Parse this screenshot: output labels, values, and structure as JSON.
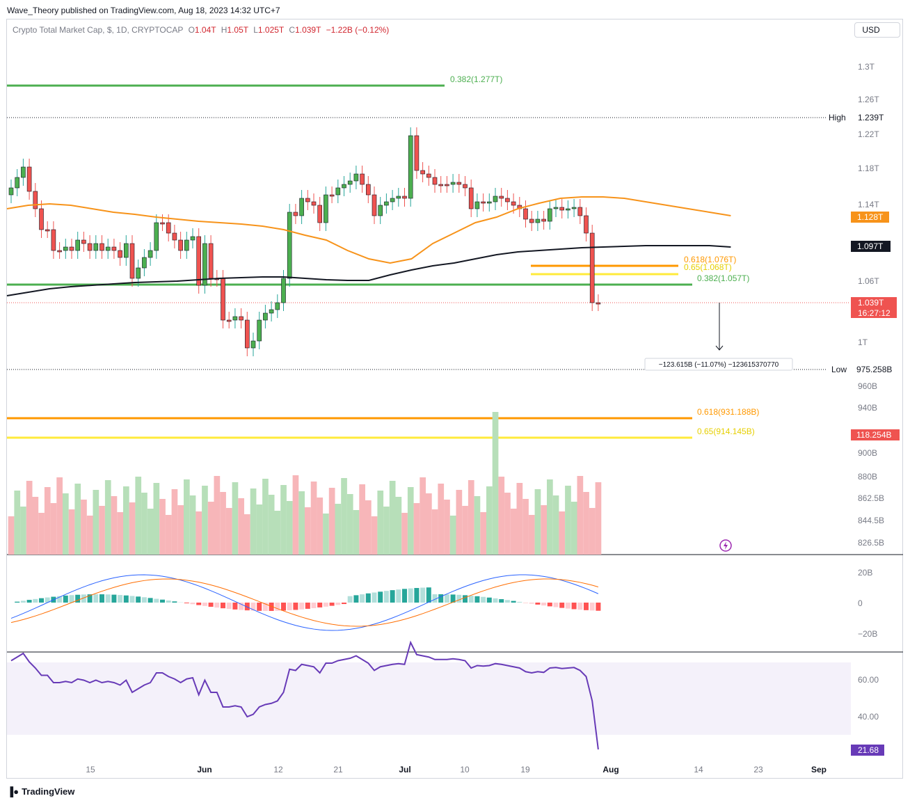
{
  "header": {
    "credit": "Wave_Theory published on TradingView.com, Aug 18, 2023 14:32 UTC+7",
    "symbol": "Crypto Total Market Cap, $, 1D, CRYPTOCAP",
    "o_label": "O",
    "o_value": "1.04T",
    "h_label": "H",
    "h_value": "1.05T",
    "l_label": "L",
    "l_value": "1.025T",
    "c_label": "C",
    "c_value": "1.039T",
    "change": "−1.22B (−0.12%)",
    "currency": "USD"
  },
  "price_axis": {
    "ticks": [
      "1.3T",
      "1.26T",
      "1.22T",
      "1.18T",
      "1.14T",
      "1.06T",
      "1T",
      "960B",
      "940B",
      "900B",
      "880B",
      "862.5B",
      "844.5B",
      "826.5B"
    ],
    "high_label": "High",
    "high_value": "1.239T",
    "low_label": "Low",
    "low_value": "975.258B",
    "ema50_value": "1.128T",
    "ema200_value": "1.097T",
    "last_value": "1.039T",
    "countdown": "16:27:12",
    "volume_value": "118.254B"
  },
  "fib_levels": {
    "upper_382": "0.382(1.277T)",
    "upper_618": "0.618(1.076T)",
    "upper_65": "0.65(1.068T)",
    "mid_382": "0.382(1.057T)",
    "lower_618": "0.618(931.188B)",
    "lower_65": "0.65(914.145B)"
  },
  "measure_label": "−123.615B (−11.07%) −123615370770",
  "macd_axis": [
    "20B",
    "0",
    "−20B"
  ],
  "rsi_axis": [
    "60.00",
    "40.00"
  ],
  "rsi_value": "21.68",
  "time_axis": [
    "15",
    "Jun",
    "12",
    "21",
    "Jul",
    "10",
    "19",
    "Aug",
    "14",
    "23",
    "Sep"
  ],
  "footer": {
    "brand": "TradingView"
  },
  "colors": {
    "up": "#26a69a",
    "down": "#ef5350",
    "ema50": "#f7931a",
    "ema200": "#131722",
    "fib_green": "#4caf50",
    "fib_orange": "#ff9800",
    "fib_yellow": "#ffeb3b",
    "rsi": "#673ab7",
    "macd": "#2962ff"
  }
}
